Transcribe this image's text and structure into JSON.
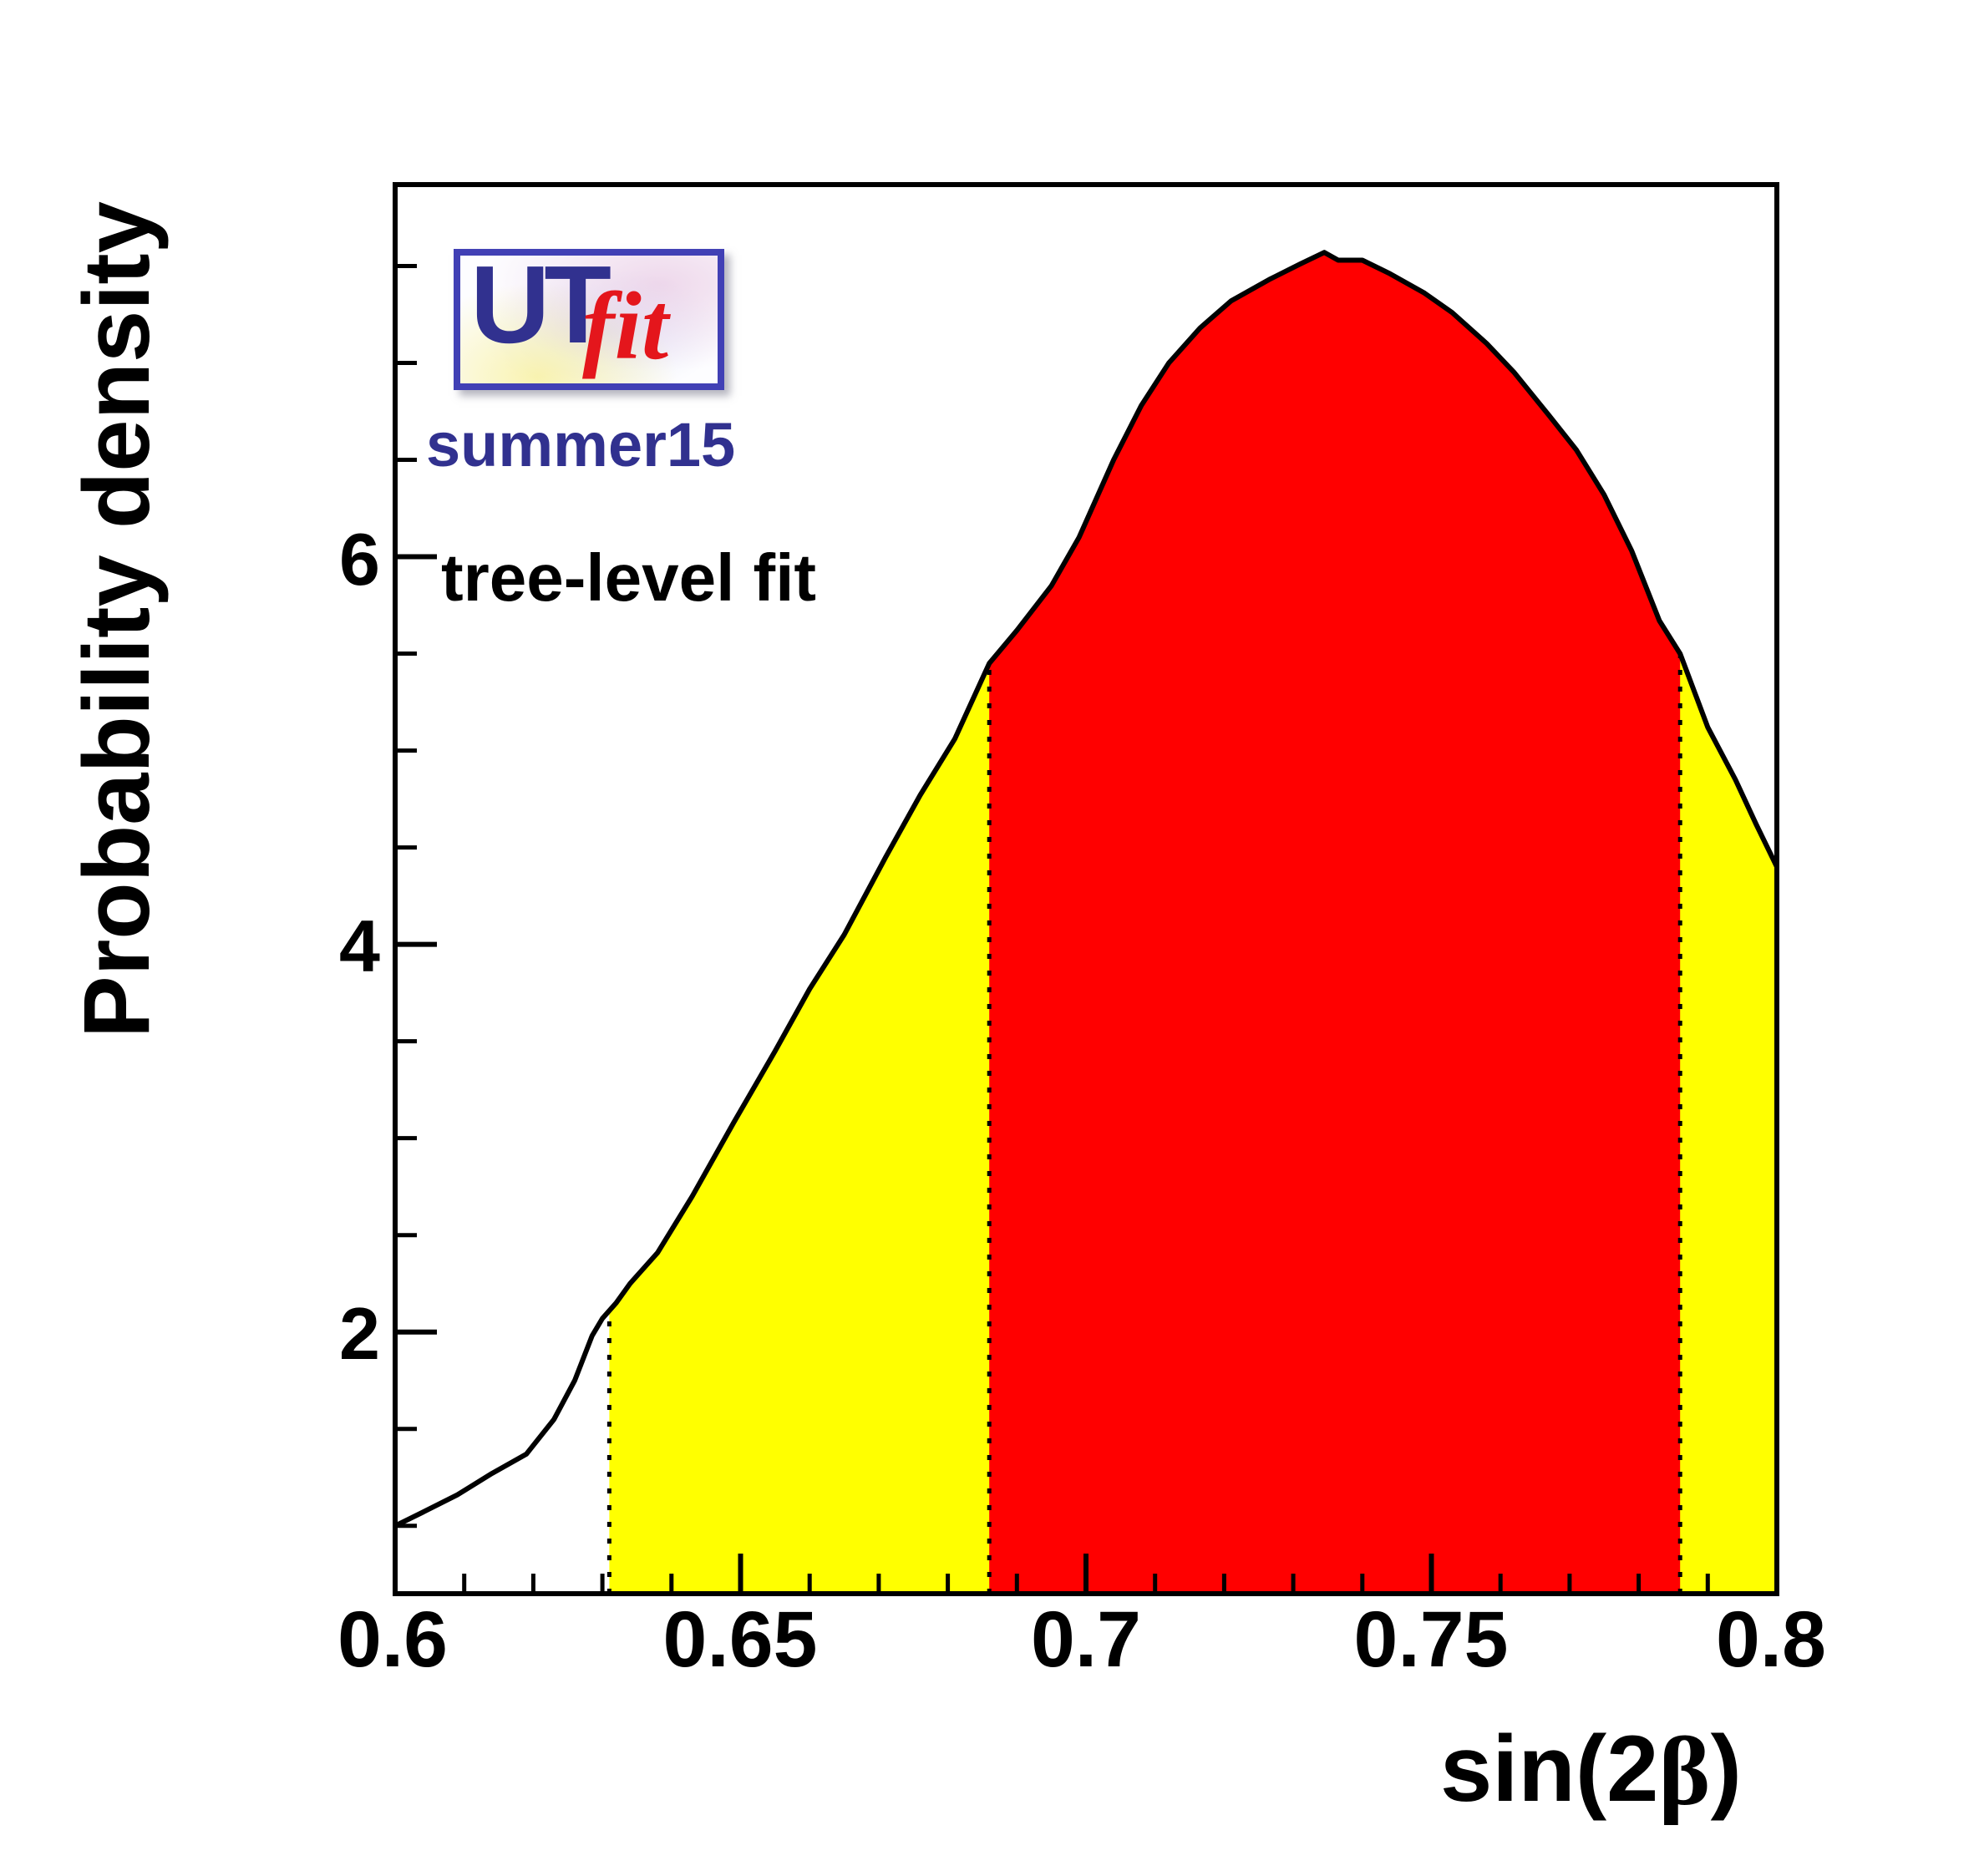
{
  "page": {
    "background": "#ffffff"
  },
  "logo": {
    "ut": "UT",
    "fit": "fit",
    "subtitle": "summer15"
  },
  "chart_data": {
    "type": "area",
    "title": "",
    "ylabel": "Probability density",
    "xlabel_parts": [
      "sin(2",
      "β",
      ")"
    ],
    "annotation": "tree-level fit",
    "xlim": [
      0.6,
      0.8
    ],
    "ylim": [
      0.65,
      7.92
    ],
    "x_major_ticks": [
      0.6,
      0.65,
      0.7,
      0.75,
      0.8
    ],
    "x_tick_labels": [
      "0.6",
      "0.65",
      "0.7",
      "0.75",
      "0.8"
    ],
    "x_minor_step": 0.01,
    "y_major_ticks": [
      2,
      4,
      6
    ],
    "y_tick_labels": [
      "2",
      "4",
      "6"
    ],
    "y_minor_step": 0.5,
    "grid": false,
    "legend": false,
    "curve": [
      [
        0.6,
        1.0
      ],
      [
        0.604,
        1.07
      ],
      [
        0.609,
        1.16
      ],
      [
        0.614,
        1.27
      ],
      [
        0.619,
        1.37
      ],
      [
        0.623,
        1.55
      ],
      [
        0.626,
        1.75
      ],
      [
        0.6285,
        1.98
      ],
      [
        0.63,
        2.07
      ],
      [
        0.632,
        2.15
      ],
      [
        0.634,
        2.25
      ],
      [
        0.638,
        2.41
      ],
      [
        0.643,
        2.7
      ],
      [
        0.649,
        3.08
      ],
      [
        0.655,
        3.45
      ],
      [
        0.66,
        3.77
      ],
      [
        0.665,
        4.05
      ],
      [
        0.671,
        4.45
      ],
      [
        0.676,
        4.77
      ],
      [
        0.681,
        5.06
      ],
      [
        0.686,
        5.45
      ],
      [
        0.69,
        5.62
      ],
      [
        0.695,
        5.85
      ],
      [
        0.699,
        6.1
      ],
      [
        0.704,
        6.5
      ],
      [
        0.708,
        6.78
      ],
      [
        0.712,
        7.0
      ],
      [
        0.7165,
        7.18
      ],
      [
        0.721,
        7.32
      ],
      [
        0.7265,
        7.43
      ],
      [
        0.731,
        7.51
      ],
      [
        0.7345,
        7.57
      ],
      [
        0.7365,
        7.53
      ],
      [
        0.74,
        7.53
      ],
      [
        0.744,
        7.46
      ],
      [
        0.749,
        7.36
      ],
      [
        0.753,
        7.26
      ],
      [
        0.758,
        7.1
      ],
      [
        0.762,
        6.95
      ],
      [
        0.767,
        6.73
      ],
      [
        0.771,
        6.55
      ],
      [
        0.775,
        6.32
      ],
      [
        0.779,
        6.03
      ],
      [
        0.783,
        5.67
      ],
      [
        0.786,
        5.5
      ],
      [
        0.79,
        5.12
      ],
      [
        0.794,
        4.85
      ],
      [
        0.797,
        4.62
      ],
      [
        0.8,
        4.4
      ]
    ],
    "bands": [
      {
        "color": "#ffff00",
        "x_from": 0.631,
        "x_to": 0.8
      },
      {
        "color": "#ff0000",
        "x_from": 0.686,
        "x_to": 0.786
      }
    ],
    "boundary_lines_x": [
      0.631,
      0.686,
      0.786
    ],
    "colors": {
      "curve": "#000000",
      "frame": "#000000",
      "band_inner": "#ff0000",
      "band_outer": "#ffff00"
    }
  }
}
